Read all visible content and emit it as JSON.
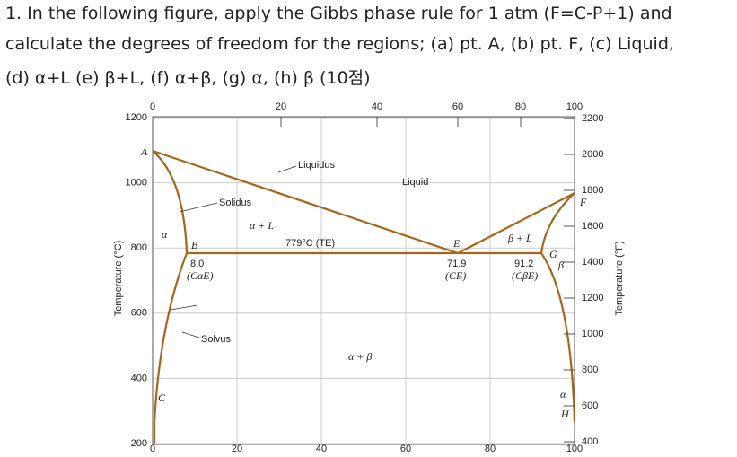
{
  "question": {
    "lines": [
      "1. In the following figure, apply the Gibbs phase rule for 1 atm (F=C-P+1) and",
      "calculate the degrees of freedom for the regions; (a) pt. A, (b) pt. F, (c) Liquid,",
      "(d) α+L (e) β+L, (f) α+β, (g) α, (h) β (10점)"
    ]
  },
  "figure": {
    "top_axis": [
      0,
      20,
      40,
      60,
      80,
      100
    ],
    "bottom_axis": [
      0,
      20,
      40,
      60,
      80,
      100
    ],
    "left_axis": [
      1200,
      1000,
      800,
      600,
      400,
      200
    ],
    "right_axis": [
      2200,
      2000,
      1800,
      1600,
      1400,
      1200,
      1000,
      800,
      600,
      400
    ],
    "left_title": "Temperature (°C)",
    "right_title": "Temperature (°F)",
    "labels": {
      "liquidus": "Liquidus",
      "solidus": "Solidus",
      "solvus": "Solvus",
      "liquid": "Liquid",
      "alpha_l": "α + L",
      "beta_l": "β + L",
      "alpha_beta": "α + β",
      "alpha": "α",
      "beta": "β",
      "te": "779°C (TE)",
      "c_ae_value": "8.0",
      "c_ae": "(CαE)",
      "c_e_value": "71.9",
      "c_e": "(CE)",
      "c_be_value": "91.2",
      "c_be": "(CβE)",
      "a": "A",
      "b": "B",
      "c": "C",
      "e": "E",
      "f": "F",
      "g": "G",
      "h": "H",
      "alpha_right": "α"
    }
  }
}
